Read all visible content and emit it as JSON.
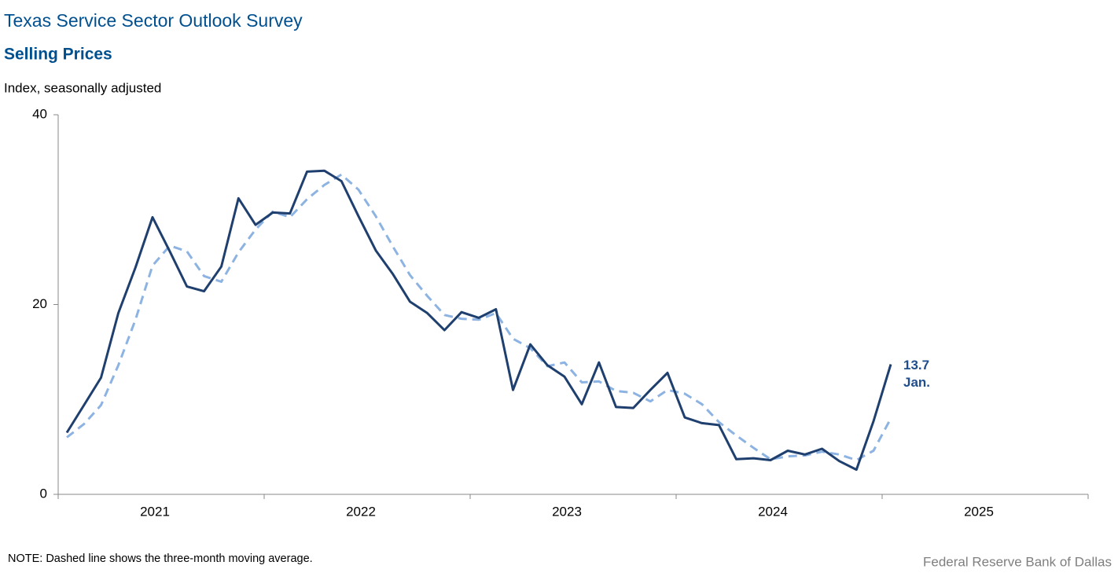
{
  "chart_data": {
    "type": "line",
    "header": "Texas Service Sector Outlook Survey",
    "title": "Selling Prices",
    "y_label": "Index, seasonally adjusted",
    "note": "NOTE: Dashed line shows the three-month  moving average.",
    "source": "Federal Reserve Bank of Dallas",
    "annotation": "Jan.",
    "x": [
      2021.042,
      2021.125,
      2021.208,
      2021.292,
      2021.375,
      2021.458,
      2021.542,
      2021.625,
      2021.708,
      2021.792,
      2021.875,
      2021.958,
      2022.042,
      2022.125,
      2022.208,
      2022.292,
      2022.375,
      2022.458,
      2022.542,
      2022.625,
      2022.708,
      2022.792,
      2022.875,
      2022.958,
      2023.042,
      2023.125,
      2023.208,
      2023.292,
      2023.375,
      2023.458,
      2023.542,
      2023.625,
      2023.708,
      2023.792,
      2023.875,
      2023.958,
      2024.042,
      2024.125,
      2024.208,
      2024.292,
      2024.375,
      2024.458,
      2024.542,
      2024.625,
      2024.708,
      2024.792,
      2024.875,
      2024.958,
      2025.042
    ],
    "series": [
      {
        "color": "#1f3f6e",
        "dashed": false,
        "values": [
          6.5,
          9.4,
          12.3,
          19.1,
          23.9,
          29.2,
          25.6,
          21.9,
          21.4,
          24.0,
          31.2,
          28.4,
          29.7,
          29.6,
          34.0,
          34.1,
          33.0,
          29.3,
          25.7,
          23.2,
          20.3,
          19.1,
          17.3,
          19.2,
          18.6,
          19.5,
          11.0,
          15.8,
          13.6,
          12.4,
          9.5,
          13.9,
          9.2,
          9.1,
          11.0,
          12.8,
          8.1,
          7.5,
          7.3,
          3.7,
          3.8,
          3.6,
          4.6,
          4.2,
          4.8,
          3.5,
          2.6,
          7.7,
          13.7
        ]
      },
      {
        "color": "#8db3e2",
        "dashed": true,
        "values": [
          6.0,
          7.4,
          9.4,
          13.6,
          18.4,
          24.1,
          26.2,
          25.6,
          23.0,
          22.4,
          25.5,
          27.9,
          29.8,
          29.2,
          31.1,
          32.6,
          33.7,
          32.1,
          29.3,
          26.1,
          23.1,
          20.9,
          18.9,
          18.5,
          18.4,
          19.1,
          16.4,
          15.4,
          13.5,
          13.9,
          11.8,
          11.9,
          10.9,
          10.7,
          9.8,
          11.0,
          10.6,
          9.5,
          7.6,
          6.2,
          4.9,
          3.7,
          4.0,
          4.1,
          4.5,
          4.2,
          3.6,
          4.6,
          8.0
        ]
      }
    ],
    "xlim": [
      2021,
      2026
    ],
    "xticks": [
      2021,
      2022,
      2023,
      2024,
      2025,
      2026
    ],
    "year_labels": [
      "2021",
      "2022",
      "2023",
      "2024",
      "2025"
    ],
    "ylim": [
      0,
      40
    ],
    "yticks": [
      0,
      20,
      40
    ],
    "grid": false
  }
}
